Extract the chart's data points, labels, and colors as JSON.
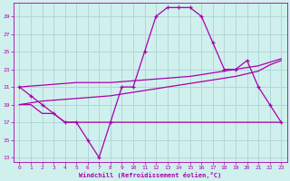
{
  "xlabel": "Windchill (Refroidissement éolien,°C)",
  "bg_color": "#d0f0ee",
  "grid_color": "#b0d8d8",
  "line_color": "#aa00aa",
  "hours": [
    0,
    1,
    2,
    3,
    4,
    5,
    6,
    7,
    8,
    9,
    10,
    11,
    12,
    13,
    14,
    15,
    16,
    17,
    18,
    19,
    20,
    21,
    22,
    23
  ],
  "line1_y": [
    21,
    20,
    19,
    18,
    17,
    17,
    15,
    13,
    17,
    21,
    21,
    25,
    29,
    30,
    30,
    30,
    29,
    26,
    23,
    23,
    24,
    21,
    19,
    17
  ],
  "line2_y": [
    19,
    19,
    18,
    18,
    17,
    17,
    17,
    17,
    17,
    17,
    17,
    17,
    17,
    17,
    17,
    17,
    17,
    17,
    17,
    17,
    17,
    17,
    17,
    17
  ],
  "line3_y": [
    19.0,
    19.2,
    19.4,
    19.5,
    19.6,
    19.7,
    19.8,
    19.9,
    20.0,
    20.2,
    20.4,
    20.6,
    20.8,
    21.0,
    21.2,
    21.4,
    21.6,
    21.8,
    22.0,
    22.2,
    22.5,
    22.8,
    23.5,
    24.0
  ],
  "line4_y": [
    21.0,
    21.1,
    21.2,
    21.3,
    21.4,
    21.5,
    21.5,
    21.5,
    21.5,
    21.6,
    21.7,
    21.8,
    21.9,
    22.0,
    22.1,
    22.2,
    22.4,
    22.6,
    22.8,
    23.0,
    23.2,
    23.4,
    23.8,
    24.2
  ],
  "ylim": [
    12.5,
    30.5
  ],
  "yticks": [
    13,
    15,
    17,
    19,
    21,
    23,
    25,
    27,
    29
  ],
  "xlim": [
    -0.5,
    23.5
  ],
  "xticks": [
    0,
    1,
    2,
    3,
    4,
    5,
    6,
    7,
    8,
    9,
    10,
    11,
    12,
    13,
    14,
    15,
    16,
    17,
    18,
    19,
    20,
    21,
    22,
    23
  ]
}
